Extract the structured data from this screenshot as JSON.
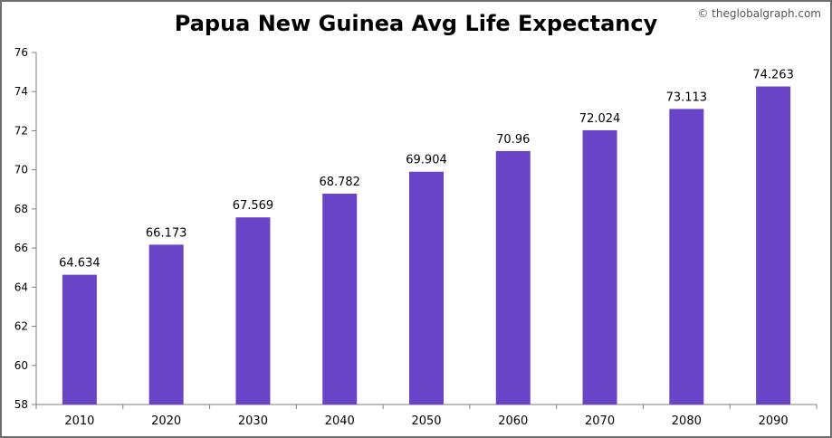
{
  "credit": "© theglobalgraph.com",
  "chart_data": {
    "type": "bar",
    "title": "Papua New Guinea Avg Life Expectancy",
    "xlabel": "",
    "ylabel": "",
    "categories": [
      "2010",
      "2020",
      "2030",
      "2040",
      "2050",
      "2060",
      "2070",
      "2080",
      "2090"
    ],
    "values": [
      64.634,
      66.173,
      67.569,
      68.782,
      69.904,
      70.96,
      72.024,
      73.113,
      74.263
    ],
    "value_labels": [
      "64.634",
      "66.173",
      "67.569",
      "68.782",
      "69.904",
      "70.96",
      "72.024",
      "73.113",
      "74.263"
    ],
    "ylim": [
      58,
      76
    ],
    "yticks": [
      58,
      60,
      62,
      64,
      66,
      68,
      70,
      72,
      74,
      76
    ],
    "ytick_labels": [
      "58",
      "60",
      "62",
      "64",
      "66",
      "68",
      "70",
      "72",
      "74",
      "76"
    ],
    "bar_color": "#6a44c6",
    "grid": false,
    "legend": "none"
  }
}
